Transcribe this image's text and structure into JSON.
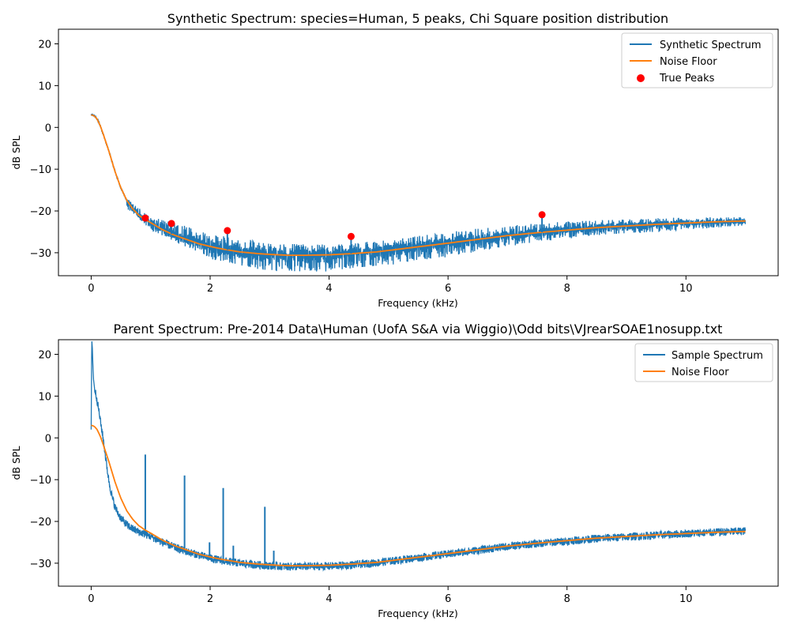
{
  "chart_data": [
    {
      "type": "line",
      "title": "Synthetic Spectrum: species=Human, 5 peaks, Chi Square position distribution",
      "xlabel": "Frequency (kHz)",
      "ylabel": "dB SPL",
      "xlim": [
        -0.55,
        11.55
      ],
      "ylim": [
        -35.5,
        23.5
      ],
      "xticks": [
        0,
        2,
        4,
        6,
        8,
        10
      ],
      "yticks": [
        -30,
        -20,
        -10,
        0,
        10,
        20
      ],
      "grid": false,
      "legend_position": "upper right",
      "legend": [
        {
          "label": "Synthetic Spectrum",
          "kind": "line",
          "color": "#1f77b4"
        },
        {
          "label": "Noise Floor",
          "kind": "line",
          "color": "#ff7f0e"
        },
        {
          "label": "True Peaks",
          "kind": "dot",
          "color": "#ff0000"
        }
      ],
      "noise_floor": {
        "x": [
          0,
          0.05,
          0.1,
          0.15,
          0.2,
          0.3,
          0.4,
          0.5,
          0.6,
          0.7,
          0.8,
          0.9,
          1.0,
          1.2,
          1.4,
          1.6,
          1.8,
          2.0,
          2.2,
          2.5,
          2.8,
          3.0,
          3.3,
          3.6,
          4.0,
          4.4,
          4.8,
          5.2,
          5.6,
          6.0,
          6.5,
          7.0,
          7.5,
          8.0,
          8.5,
          9.0,
          9.5,
          10.0,
          10.5,
          11.0
        ],
        "y": [
          3.0,
          2.8,
          2.0,
          0.5,
          -1.5,
          -5.8,
          -10.5,
          -14.5,
          -17.5,
          -19.5,
          -21.0,
          -22.0,
          -22.8,
          -24.5,
          -25.8,
          -26.8,
          -27.8,
          -28.5,
          -29.1,
          -29.8,
          -30.2,
          -30.4,
          -30.6,
          -30.6,
          -30.5,
          -30.2,
          -29.8,
          -29.1,
          -28.4,
          -27.7,
          -26.8,
          -25.9,
          -25.2,
          -24.6,
          -24.0,
          -23.6,
          -23.2,
          -22.9,
          -22.6,
          -22.4
        ]
      },
      "noise_envelope": {
        "x": [
          0.6,
          1.0,
          1.5,
          2.0,
          2.5,
          3.0,
          3.5,
          4.0,
          4.5,
          5.0,
          5.5,
          6.0,
          7.0,
          8.0,
          9.0,
          10.0,
          11.0
        ],
        "lower": [
          -19.5,
          -24.5,
          -28.0,
          -31.5,
          -33.0,
          -34.5,
          -34.5,
          -34.5,
          -33.5,
          -33.0,
          -32.0,
          -31.0,
          -28.5,
          -26.5,
          -25.5,
          -24.5,
          -23.5
        ],
        "upper": [
          -17.0,
          -21.5,
          -23.0,
          -25.5,
          -26.5,
          -27.5,
          -28.0,
          -28.0,
          -27.5,
          -27.0,
          -26.0,
          -25.0,
          -23.5,
          -22.5,
          -22.0,
          -21.5,
          -21.5
        ]
      },
      "peaks": {
        "x": [
          0.91,
          1.35,
          2.29,
          4.37,
          7.58
        ],
        "y": [
          -21.7,
          -23.0,
          -24.7,
          -26.1,
          -20.9
        ]
      }
    },
    {
      "type": "line",
      "title": "Parent Spectrum: Pre-2014 Data\\Human (UofA S&A via Wiggio)\\Odd bits\\VJrearSOAE1nosupp.txt",
      "xlabel": "Frequency (kHz)",
      "ylabel": "dB SPL",
      "xlim": [
        -0.55,
        11.55
      ],
      "ylim": [
        -35.5,
        23.5
      ],
      "xticks": [
        0,
        2,
        4,
        6,
        8,
        10
      ],
      "yticks": [
        -30,
        -20,
        -10,
        0,
        10,
        20
      ],
      "grid": false,
      "legend_position": "upper right",
      "legend": [
        {
          "label": "Sample Spectrum",
          "kind": "line",
          "color": "#1f77b4"
        },
        {
          "label": "Noise Floor",
          "kind": "line",
          "color": "#ff7f0e"
        }
      ],
      "noise_floor": {
        "x": [
          0,
          0.05,
          0.1,
          0.15,
          0.2,
          0.3,
          0.4,
          0.5,
          0.6,
          0.7,
          0.8,
          0.9,
          1.0,
          1.2,
          1.4,
          1.6,
          1.8,
          2.0,
          2.2,
          2.5,
          2.8,
          3.0,
          3.3,
          3.6,
          4.0,
          4.4,
          4.8,
          5.2,
          5.6,
          6.0,
          6.5,
          7.0,
          7.5,
          8.0,
          8.5,
          9.0,
          9.5,
          10.0,
          10.5,
          11.0
        ],
        "y": [
          3.0,
          2.8,
          2.0,
          0.5,
          -1.5,
          -5.8,
          -10.5,
          -14.5,
          -17.5,
          -19.5,
          -21.0,
          -22.0,
          -22.8,
          -24.5,
          -25.8,
          -26.8,
          -27.8,
          -28.5,
          -29.1,
          -29.8,
          -30.2,
          -30.4,
          -30.6,
          -30.6,
          -30.5,
          -30.2,
          -29.8,
          -29.1,
          -28.4,
          -27.7,
          -26.8,
          -25.9,
          -25.2,
          -24.6,
          -24.0,
          -23.6,
          -23.2,
          -22.9,
          -22.6,
          -22.4
        ]
      },
      "sample_spectrum": {
        "x": [
          0.0,
          0.01,
          0.02,
          0.03,
          0.04,
          0.06,
          0.08,
          0.1,
          0.13,
          0.16,
          0.2,
          0.25,
          0.3,
          0.35,
          0.4,
          0.45,
          0.5,
          0.6,
          0.7,
          0.8,
          0.9,
          1.0,
          1.2,
          1.4,
          1.6,
          1.8,
          2.0,
          2.2,
          2.5,
          2.8,
          3.0,
          3.3,
          3.6,
          4.0,
          4.4,
          4.8,
          5.2,
          5.6,
          6.0,
          6.5,
          7.0,
          7.5,
          8.0,
          8.5,
          9.0,
          9.5,
          10.0,
          10.5,
          11.0
        ],
        "y": [
          2.0,
          23.5,
          21.5,
          17.0,
          14.0,
          11.5,
          10.5,
          9.0,
          6.5,
          3.5,
          0.0,
          -5.5,
          -10.5,
          -14.0,
          -16.5,
          -18.0,
          -19.2,
          -20.8,
          -21.8,
          -22.5,
          -23.0,
          -23.6,
          -25.0,
          -26.2,
          -27.2,
          -28.0,
          -28.8,
          -29.4,
          -30.0,
          -30.4,
          -30.6,
          -30.8,
          -30.8,
          -30.7,
          -30.4,
          -29.9,
          -29.2,
          -28.5,
          -27.8,
          -26.9,
          -26.0,
          -25.3,
          -24.7,
          -24.1,
          -23.7,
          -23.3,
          -22.9,
          -22.6,
          -22.3
        ]
      },
      "sample_band": 1.2,
      "sample_peaks": {
        "x": [
          0.91,
          1.57,
          1.99,
          2.22,
          2.39,
          2.92,
          3.07
        ],
        "y": [
          -4.0,
          -9.0,
          -25.0,
          -12.0,
          -25.8,
          -16.5,
          -27.0
        ]
      }
    }
  ]
}
